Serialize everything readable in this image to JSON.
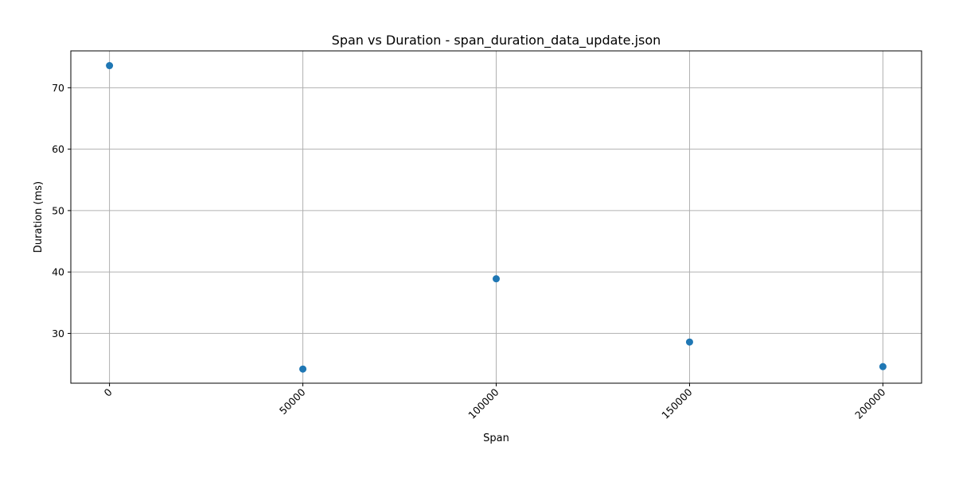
{
  "chart_data": {
    "type": "scatter",
    "title": "Span vs Duration - span_duration_data_update.json",
    "xlabel": "Span",
    "ylabel": "Duration (ms)",
    "x": [
      0,
      50000,
      100000,
      150000,
      200000
    ],
    "y": [
      73.6,
      24.2,
      38.9,
      28.6,
      24.6
    ],
    "xlim": [
      -10000,
      210000
    ],
    "ylim": [
      21.9,
      76.0
    ],
    "xticks": [
      0,
      50000,
      100000,
      150000,
      200000
    ],
    "xtick_labels": [
      "0",
      "50000",
      "100000",
      "150000",
      "200000"
    ],
    "xtick_rotation": 45,
    "yticks": [
      30,
      40,
      50,
      60,
      70
    ],
    "ytick_labels": [
      "30",
      "40",
      "50",
      "60",
      "70"
    ],
    "grid": true,
    "color": "#1f77b4"
  }
}
